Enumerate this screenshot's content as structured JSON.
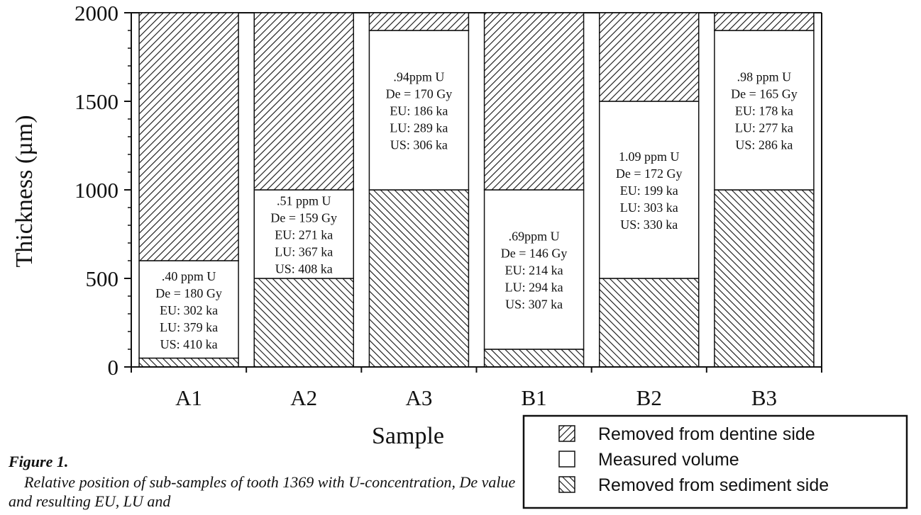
{
  "chart_data": {
    "type": "bar",
    "stacked": true,
    "ylabel": "Thickness (µm)",
    "xlabel": "Sample",
    "ylim": [
      0,
      2000
    ],
    "yticks": [
      "0",
      "500",
      "1000",
      "1500",
      "2000"
    ],
    "categories": [
      "A1",
      "A2",
      "A3",
      "B1",
      "B2",
      "B3"
    ],
    "series": [
      {
        "name": "Removed from sediment side",
        "pattern": "hatch-back",
        "values": [
          50,
          500,
          1000,
          100,
          500,
          1000
        ]
      },
      {
        "name": "Measured volume",
        "pattern": "none",
        "values": [
          550,
          500,
          900,
          900,
          1000,
          900
        ]
      },
      {
        "name": "Removed from dentine side",
        "pattern": "hatch-forward",
        "values": [
          1400,
          1000,
          100,
          1000,
          500,
          100
        ]
      }
    ],
    "annotations": [
      {
        "category": "A1",
        "lines": [
          ".40 ppm U",
          "De = 180 Gy",
          "EU: 302 ka",
          "LU: 379 ka",
          "US: 410 ka"
        ]
      },
      {
        "category": "A2",
        "lines": [
          ".51 ppm U",
          "De = 159 Gy",
          "EU: 271 ka",
          "LU: 367 ka",
          "US: 408 ka"
        ]
      },
      {
        "category": "A3",
        "lines": [
          ".94ppm U",
          "De = 170 Gy",
          "EU: 186 ka",
          "LU: 289 ka",
          "US: 306 ka"
        ]
      },
      {
        "category": "B1",
        "lines": [
          ".69ppm U",
          "De = 146 Gy",
          "EU: 214 ka",
          "LU: 294 ka",
          "US: 307 ka"
        ]
      },
      {
        "category": "B2",
        "lines": [
          "1.09 ppm U",
          "De = 172 Gy",
          "EU: 199 ka",
          "LU: 303 ka",
          "US: 330 ka"
        ]
      },
      {
        "category": "B3",
        "lines": [
          ".98 ppm U",
          "De = 165 Gy",
          "EU: 178 ka",
          "LU: 277 ka",
          "US: 286 ka"
        ]
      }
    ],
    "legend_position": "bottom-right",
    "grid": false
  },
  "caption": {
    "heading": "Figure 1.",
    "text": "Relative position of sub-samples of tooth 1369 with U-concentration, De value and resulting EU, LU and"
  }
}
